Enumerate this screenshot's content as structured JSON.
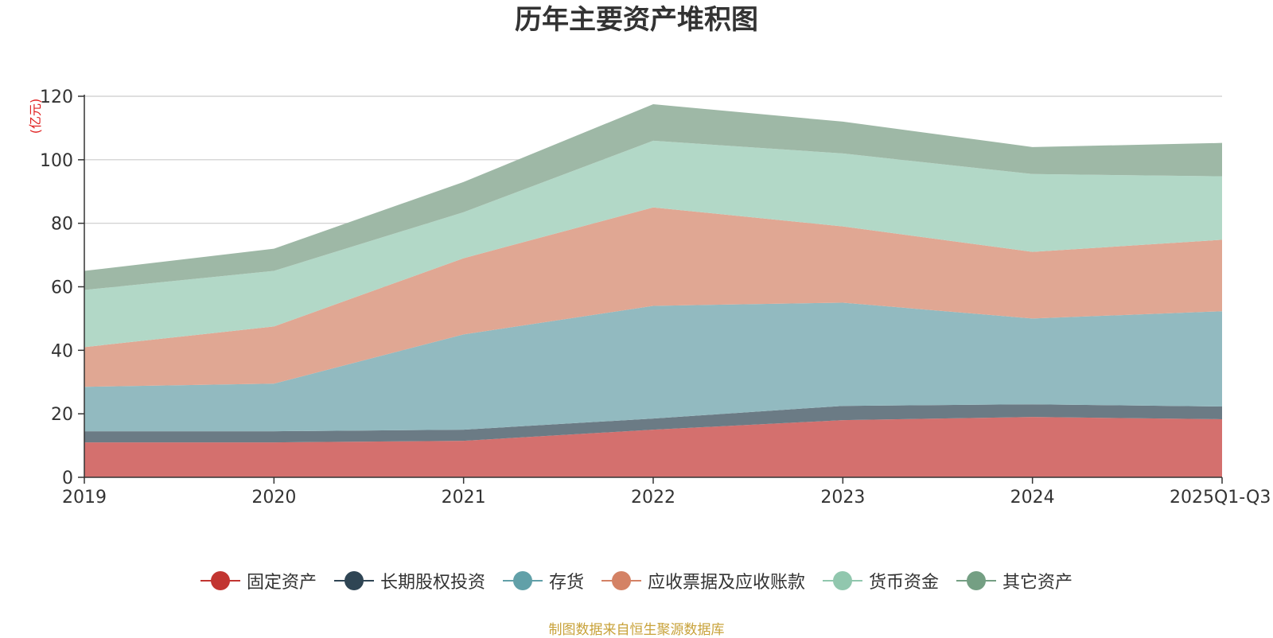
{
  "chart_data": {
    "type": "area",
    "stacked": true,
    "title": "历年主要资产堆积图",
    "ylabel": "(亿元)",
    "xlabel": "",
    "categories": [
      "2019",
      "2020",
      "2021",
      "2022",
      "2023",
      "2024",
      "2025Q1-Q3"
    ],
    "ylim": [
      0,
      120
    ],
    "yticks": [
      0,
      20,
      40,
      60,
      80,
      100,
      120
    ],
    "grid": true,
    "legend_position": "bottom",
    "series": [
      {
        "name": "固定资产",
        "color": "#c23531",
        "area_color": "#d4706e",
        "values": [
          11,
          11,
          11.5,
          15,
          18,
          19,
          18.3
        ]
      },
      {
        "name": "长期股权投资",
        "color": "#2f4554",
        "area_color": "#6b7b85",
        "values": [
          3.5,
          3.5,
          3.5,
          3.5,
          4.5,
          4,
          4
        ]
      },
      {
        "name": "存货",
        "color": "#61a0a8",
        "area_color": "#92bac0",
        "values": [
          14,
          15,
          30,
          35.5,
          32.5,
          27,
          30
        ]
      },
      {
        "name": "应收票据及应收账款",
        "color": "#d48265",
        "area_color": "#e0a793",
        "values": [
          12.5,
          18,
          24,
          31,
          24,
          21,
          22.5
        ]
      },
      {
        "name": "货币资金",
        "color": "#91c7ae",
        "area_color": "#b2d8c7",
        "values": [
          18,
          17.5,
          14.5,
          21,
          23,
          24.5,
          20
        ]
      },
      {
        "name": "其它资产",
        "color": "#749f83",
        "area_color": "#9eb8a6",
        "values": [
          6,
          7,
          9.5,
          11.5,
          10,
          8.5,
          10.5
        ]
      }
    ]
  },
  "source_note": "制图数据来自恒生聚源数据库"
}
